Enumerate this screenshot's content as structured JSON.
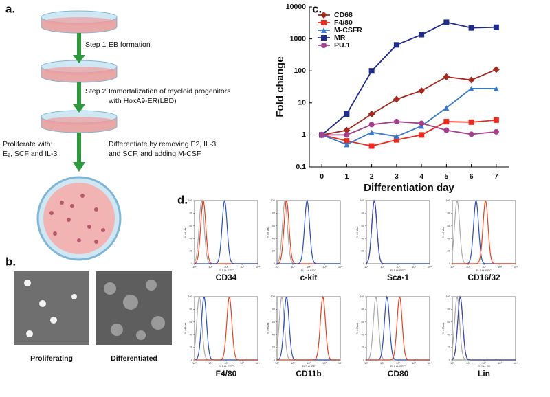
{
  "panel_a": {
    "label": "a.",
    "steps": [
      {
        "step": "Step 1",
        "text": [
          "EB formation"
        ]
      },
      {
        "step": "Step 2",
        "text": [
          "Immortalization of myeloid progenitors",
          "with HoxA9-ER(LBD)"
        ]
      },
      {
        "text": [
          "Differentiate by removing E2, IL-3",
          "and SCF, and adding M-CSF"
        ]
      }
    ],
    "proliferate": [
      "Proliferate with:",
      "E₂, SCF and IL-3"
    ]
  },
  "panel_b": {
    "label": "b.",
    "images": [
      "Proliferating",
      "Differentiated"
    ]
  },
  "chart_data": {
    "type": "line",
    "panel_label": "c.",
    "xlabel": "Differentiation day",
    "ylabel": "Fold change",
    "x": [
      0,
      1,
      2,
      3,
      4,
      5,
      6,
      7
    ],
    "xlim": [
      -0.5,
      7.5
    ],
    "xticks": [
      0,
      1,
      2,
      3,
      4,
      5,
      6,
      7
    ],
    "ylim": [
      0.1,
      10000
    ],
    "yticks": [
      0.1,
      1,
      10,
      100,
      1000,
      10000
    ],
    "log_y": true,
    "legend": "upper-left",
    "series": [
      {
        "name": "CD68",
        "color": "#a3281f",
        "marker": "diamond",
        "values": [
          1,
          1.4,
          4.5,
          13,
          24,
          65,
          52,
          110
        ]
      },
      {
        "name": "F4/80",
        "color": "#ea2a1e",
        "marker": "square",
        "values": [
          1,
          0.65,
          0.45,
          0.7,
          1.0,
          2.6,
          2.5,
          2.9
        ]
      },
      {
        "name": "M-CSFR",
        "color": "#3b78c8",
        "marker": "triangle",
        "values": [
          1,
          0.5,
          1.2,
          0.9,
          1.9,
          7,
          28,
          28
        ]
      },
      {
        "name": "MR",
        "color": "#1f2a8a",
        "marker": "square",
        "values": [
          1,
          4.5,
          100,
          650,
          1350,
          3300,
          2200,
          2300
        ]
      },
      {
        "name": "PU.1",
        "color": "#a3408c",
        "marker": "circle",
        "values": [
          1,
          1.0,
          2.1,
          2.6,
          2.3,
          1.4,
          1.05,
          1.25
        ]
      }
    ]
  },
  "panel_d": {
    "label": "d.",
    "ylabel": "% of Max",
    "yticks": [
      0,
      20,
      40,
      60,
      80,
      100
    ],
    "xticks": [
      {
        "value": 0,
        "label": "10⁰"
      },
      {
        "value": 1,
        "label": "10¹"
      },
      {
        "value": 2,
        "label": "10²"
      },
      {
        "value": 3,
        "label": "10³"
      },
      {
        "value": 4,
        "label": "10⁴"
      }
    ],
    "plots": [
      {
        "title": "CD34",
        "xlabel": "FL1-H: FITC",
        "curves": [
          {
            "color": "#aaaaaa",
            "peak": 0.45
          },
          {
            "color": "#e8401e",
            "peak": 0.55
          },
          {
            "color": "#2a4fb8",
            "peak": 1.9
          }
        ]
      },
      {
        "title": "c-kit",
        "xlabel": "FL1-H: FITC",
        "curves": [
          {
            "color": "#aaaaaa",
            "peak": 0.5
          },
          {
            "color": "#e8401e",
            "peak": 0.6
          },
          {
            "color": "#2a4fb8",
            "peak": 1.9
          }
        ]
      },
      {
        "title": "Sca-1",
        "xlabel": "FL1-H: FITC",
        "curves": [
          {
            "color": "#aaaaaa",
            "peak": 0.5
          },
          {
            "color": "#e8401e",
            "peak": 0.5
          },
          {
            "color": "#2a4fb8",
            "peak": 0.5
          }
        ]
      },
      {
        "title": "CD16/32",
        "xlabel": "FL1-H: FITC",
        "curves": [
          {
            "color": "#aaaaaa",
            "peak": 0.3
          },
          {
            "color": "#2a4fb8",
            "peak": 1.5
          },
          {
            "color": "#e8401e",
            "peak": 2.1
          }
        ]
      },
      {
        "title": "F4/80",
        "xlabel": "FL1-H: FITC",
        "curves": [
          {
            "color": "#aaaaaa",
            "peak": 0.3
          },
          {
            "color": "#2a4fb8",
            "peak": 0.6
          },
          {
            "color": "#e8401e",
            "peak": 2.2
          }
        ]
      },
      {
        "title": "CD11b",
        "xlabel": "FL2-H: PE",
        "curves": [
          {
            "color": "#aaaaaa",
            "peak": 0.3
          },
          {
            "color": "#2a4fb8",
            "peak": 0.6
          },
          {
            "color": "#e8401e",
            "peak": 2.9
          }
        ]
      },
      {
        "title": "CD80",
        "xlabel": "FL1-H: FITC",
        "curves": [
          {
            "color": "#aaaaaa",
            "peak": 0.6
          },
          {
            "color": "#2a4fb8",
            "peak": 1.3
          },
          {
            "color": "#e8401e",
            "peak": 2.1
          }
        ]
      },
      {
        "title": "Lin",
        "xlabel": "FL2-H: PE",
        "curves": [
          {
            "color": "#aaaaaa",
            "peak": 0.3
          },
          {
            "color": "#e8401e",
            "peak": 0.5
          },
          {
            "color": "#2a4fb8",
            "peak": 0.5
          }
        ]
      }
    ]
  }
}
